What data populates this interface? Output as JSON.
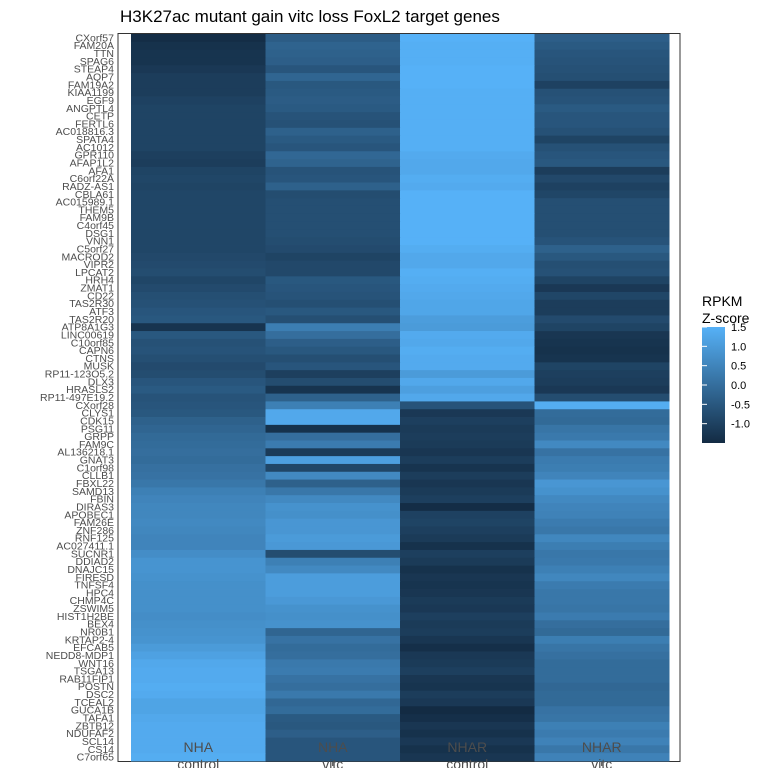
{
  "chart_data": {
    "type": "heatmap",
    "title": "H3K27ac mutant gain vitc loss FoxL2 target genes",
    "columns": [
      {
        "line1": "NHA",
        "line2": "control"
      },
      {
        "line1": "NHA",
        "line2": "vitc"
      },
      {
        "line1": "NHAR",
        "line2": "control"
      },
      {
        "line1": "NHAR",
        "line2": "vitc"
      }
    ],
    "rows": [
      "CXorf57",
      "FAM20A",
      "TTN",
      "SPAG6",
      "STEAP4",
      "AQP7",
      "FAM19A2",
      "KIAA1199",
      "EGF9",
      "ANGPTL4",
      "CETP",
      "FERTL6",
      "AC018816.3",
      "SPATA4",
      "AC1012",
      "GPR110",
      "AFAP1L2",
      "AFA1",
      "C6orf22A",
      "RADZ-AS1",
      "CBLA61",
      "AC015989.1",
      "THEM5",
      "FAM9B",
      "C4orf45",
      "DSG1",
      "VNN1",
      "C5orf27",
      "MACROD2",
      "VIPR2",
      "LPCAT2",
      "HRH4",
      "ZMAT1",
      "CD22",
      "TAS2R30",
      "ATF3",
      "TAS2R20",
      "ATP8A1G3",
      "LINC00619",
      "C10orf85",
      "CAPN6",
      "CTNS",
      "MUSK",
      "RP11-123O5.2",
      "DLX3",
      "HRASLS2",
      "RP11-497E19.2",
      "CXorf28",
      "CLYS1",
      "CDK15",
      "PSG11",
      "GRPP",
      "FAM9C",
      "AL136218.1",
      "GNAT3",
      "C1orf98",
      "CLLB1",
      "FBXL22",
      "SAMD13",
      "FBIN",
      "DIRAS3",
      "APOBEC1",
      "FAM26E",
      "ZNF286",
      "RNF125",
      "AC027411.1",
      "SUCNR1",
      "DDIAD2",
      "DNAJC15",
      "FIRESD",
      "TNFSF4",
      "HPC4",
      "CHMP4C",
      "ZSWIM5",
      "HIST1H2BE",
      "BEX4",
      "NR0B1",
      "KRTAP2-4",
      "EFCAB5",
      "NEDD8-MDP1",
      "WNT16",
      "TSGA13",
      "RAB11FIP1",
      "POSTN",
      "DSC2",
      "TCEAL2",
      "GUCA1B",
      "TAFA1",
      "ZBTB12",
      "NDUFAF2",
      "SCL14",
      "CS14",
      "C7orf65"
    ],
    "values": [
      [
        -1.45,
        -0.4,
        1.5,
        -0.35
      ],
      [
        -1.35,
        -0.25,
        1.45,
        -0.45
      ],
      [
        -1.3,
        -0.3,
        1.45,
        -0.55
      ],
      [
        -1.3,
        -0.35,
        1.45,
        -0.6
      ],
      [
        -1.2,
        -0.55,
        1.5,
        -0.65
      ],
      [
        -1.1,
        -0.2,
        1.5,
        -0.7
      ],
      [
        -1.1,
        -0.5,
        1.5,
        -1.0
      ],
      [
        -1.1,
        -0.45,
        1.45,
        -0.65
      ],
      [
        -1.0,
        -0.4,
        1.45,
        -0.6
      ],
      [
        -0.95,
        -0.45,
        1.45,
        -0.45
      ],
      [
        -0.95,
        -0.6,
        1.45,
        -0.55
      ],
      [
        -0.95,
        -0.65,
        1.45,
        -0.55
      ],
      [
        -0.95,
        -0.3,
        1.45,
        -0.65
      ],
      [
        -0.95,
        -0.45,
        1.45,
        -0.95
      ],
      [
        -0.95,
        -0.55,
        1.45,
        -0.65
      ],
      [
        -1.05,
        -0.15,
        1.35,
        -0.55
      ],
      [
        -1.1,
        -0.25,
        1.3,
        -0.5
      ],
      [
        -0.95,
        -0.6,
        1.3,
        -1.1
      ],
      [
        -0.9,
        -0.55,
        1.4,
        -0.85
      ],
      [
        -0.95,
        -0.3,
        1.35,
        -1.0
      ],
      [
        -0.9,
        -0.75,
        1.5,
        -0.9
      ],
      [
        -0.9,
        -0.7,
        1.5,
        -0.7
      ],
      [
        -0.9,
        -0.7,
        1.5,
        -0.7
      ],
      [
        -0.9,
        -0.7,
        1.5,
        -0.7
      ],
      [
        -0.9,
        -0.7,
        1.5,
        -0.7
      ],
      [
        -0.9,
        -0.7,
        1.5,
        -0.7
      ],
      [
        -0.9,
        -0.75,
        1.5,
        -0.6
      ],
      [
        -0.9,
        -0.8,
        1.4,
        -0.3
      ],
      [
        -0.85,
        -0.95,
        1.3,
        -0.5
      ],
      [
        -0.8,
        -0.85,
        1.3,
        -0.7
      ],
      [
        -0.75,
        -0.85,
        1.45,
        -0.65
      ],
      [
        -0.9,
        -0.5,
        1.4,
        -0.95
      ],
      [
        -0.8,
        -0.55,
        1.35,
        -1.2
      ],
      [
        -0.7,
        -0.6,
        1.3,
        -0.9
      ],
      [
        -0.65,
        -0.7,
        1.25,
        -1.1
      ],
      [
        -0.55,
        -0.5,
        1.25,
        -1.1
      ],
      [
        -0.5,
        -0.7,
        1.05,
        -0.8
      ],
      [
        -1.3,
        0.35,
        1.0,
        -0.95
      ],
      [
        -0.5,
        0.0,
        1.35,
        -1.25
      ],
      [
        -0.65,
        -0.35,
        1.3,
        -1.3
      ],
      [
        -0.6,
        -0.5,
        1.4,
        -1.35
      ],
      [
        -0.7,
        -0.7,
        1.35,
        -1.3
      ],
      [
        -0.8,
        -0.55,
        1.35,
        -0.95
      ],
      [
        -0.75,
        -1.05,
        1.0,
        -1.05
      ],
      [
        -0.55,
        -0.75,
        1.3,
        -1.1
      ],
      [
        -0.45,
        -1.3,
        1.1,
        -1.2
      ],
      [
        -0.6,
        -0.3,
        1.3,
        -0.75
      ],
      [
        -0.55,
        0.4,
        -0.6,
        1.4
      ],
      [
        -0.5,
        1.3,
        -1.2,
        -0.05
      ],
      [
        -0.3,
        1.3,
        -1.05,
        -0.1
      ],
      [
        -0.2,
        -1.35,
        -1.15,
        0.15
      ],
      [
        -0.1,
        0.0,
        -1.1,
        0.25
      ],
      [
        -0.05,
        0.3,
        -1.15,
        0.6
      ],
      [
        0.0,
        -1.15,
        -1.25,
        0.1
      ],
      [
        -0.05,
        1.1,
        -1.1,
        0.3
      ],
      [
        0.05,
        -0.9,
        -1.3,
        0.35
      ],
      [
        0.1,
        0.6,
        -1.1,
        0.5
      ],
      [
        0.2,
        -0.3,
        -1.25,
        0.9
      ],
      [
        0.4,
        0.2,
        -1.15,
        0.8
      ],
      [
        0.5,
        0.6,
        -1.05,
        0.6
      ],
      [
        0.55,
        0.8,
        -1.45,
        0.5
      ],
      [
        0.55,
        0.75,
        -1.0,
        0.45
      ],
      [
        0.6,
        0.9,
        -0.95,
        0.3
      ],
      [
        0.55,
        0.9,
        -1.05,
        0.2
      ],
      [
        0.5,
        1.0,
        -1.15,
        0.55
      ],
      [
        0.5,
        0.95,
        -1.35,
        0.35
      ],
      [
        0.7,
        -0.75,
        -1.05,
        0.2
      ],
      [
        0.85,
        0.4,
        -1.15,
        0.25
      ],
      [
        0.85,
        0.6,
        -1.35,
        0.4
      ],
      [
        0.8,
        1.05,
        -1.25,
        0.55
      ],
      [
        0.75,
        1.05,
        -1.3,
        0.3
      ],
      [
        0.75,
        1.05,
        -1.25,
        0.2
      ],
      [
        0.75,
        0.95,
        -1.15,
        0.2
      ],
      [
        0.75,
        0.8,
        -1.2,
        0.15
      ],
      [
        0.7,
        0.75,
        -1.05,
        0.3
      ],
      [
        0.75,
        0.8,
        -1.15,
        0.0
      ],
      [
        0.8,
        -0.2,
        -1.1,
        -0.1
      ],
      [
        0.85,
        0.1,
        -1.25,
        0.35
      ],
      [
        1.0,
        -0.05,
        -1.4,
        0.15
      ],
      [
        1.15,
        0.0,
        -1.2,
        0.05
      ],
      [
        1.3,
        0.25,
        -1.15,
        -0.05
      ],
      [
        1.35,
        0.3,
        -1.05,
        -0.05
      ],
      [
        1.35,
        0.1,
        -1.25,
        -0.05
      ],
      [
        1.4,
        0.0,
        -1.3,
        -0.15
      ],
      [
        1.35,
        0.25,
        -1.1,
        -0.1
      ],
      [
        1.2,
        -0.15,
        -1.2,
        -0.1
      ],
      [
        1.2,
        -0.05,
        -1.5,
        0.1
      ],
      [
        1.3,
        -0.45,
        -1.4,
        0.15
      ],
      [
        1.35,
        -0.5,
        -1.25,
        0.4
      ],
      [
        1.35,
        -0.35,
        -1.35,
        0.3
      ],
      [
        1.35,
        -0.55,
        -1.2,
        0.45
      ],
      [
        1.35,
        -0.55,
        -1.35,
        0.2
      ],
      [
        1.4,
        -0.55,
        -1.25,
        0.45
      ]
    ],
    "legend": {
      "title_line1": "RPKM",
      "title_line2": "Z-score",
      "placement": "right",
      "ticks": [
        "1.5",
        "1.0",
        "0.5",
        "0.0",
        "-0.5",
        "-1.0"
      ],
      "tick_values": [
        1.5,
        1.0,
        0.5,
        0.0,
        -0.5,
        -1.0
      ],
      "min": -1.5,
      "max": 1.5
    },
    "colors": {
      "low": "#132b43",
      "high": "#56b1f7"
    }
  }
}
